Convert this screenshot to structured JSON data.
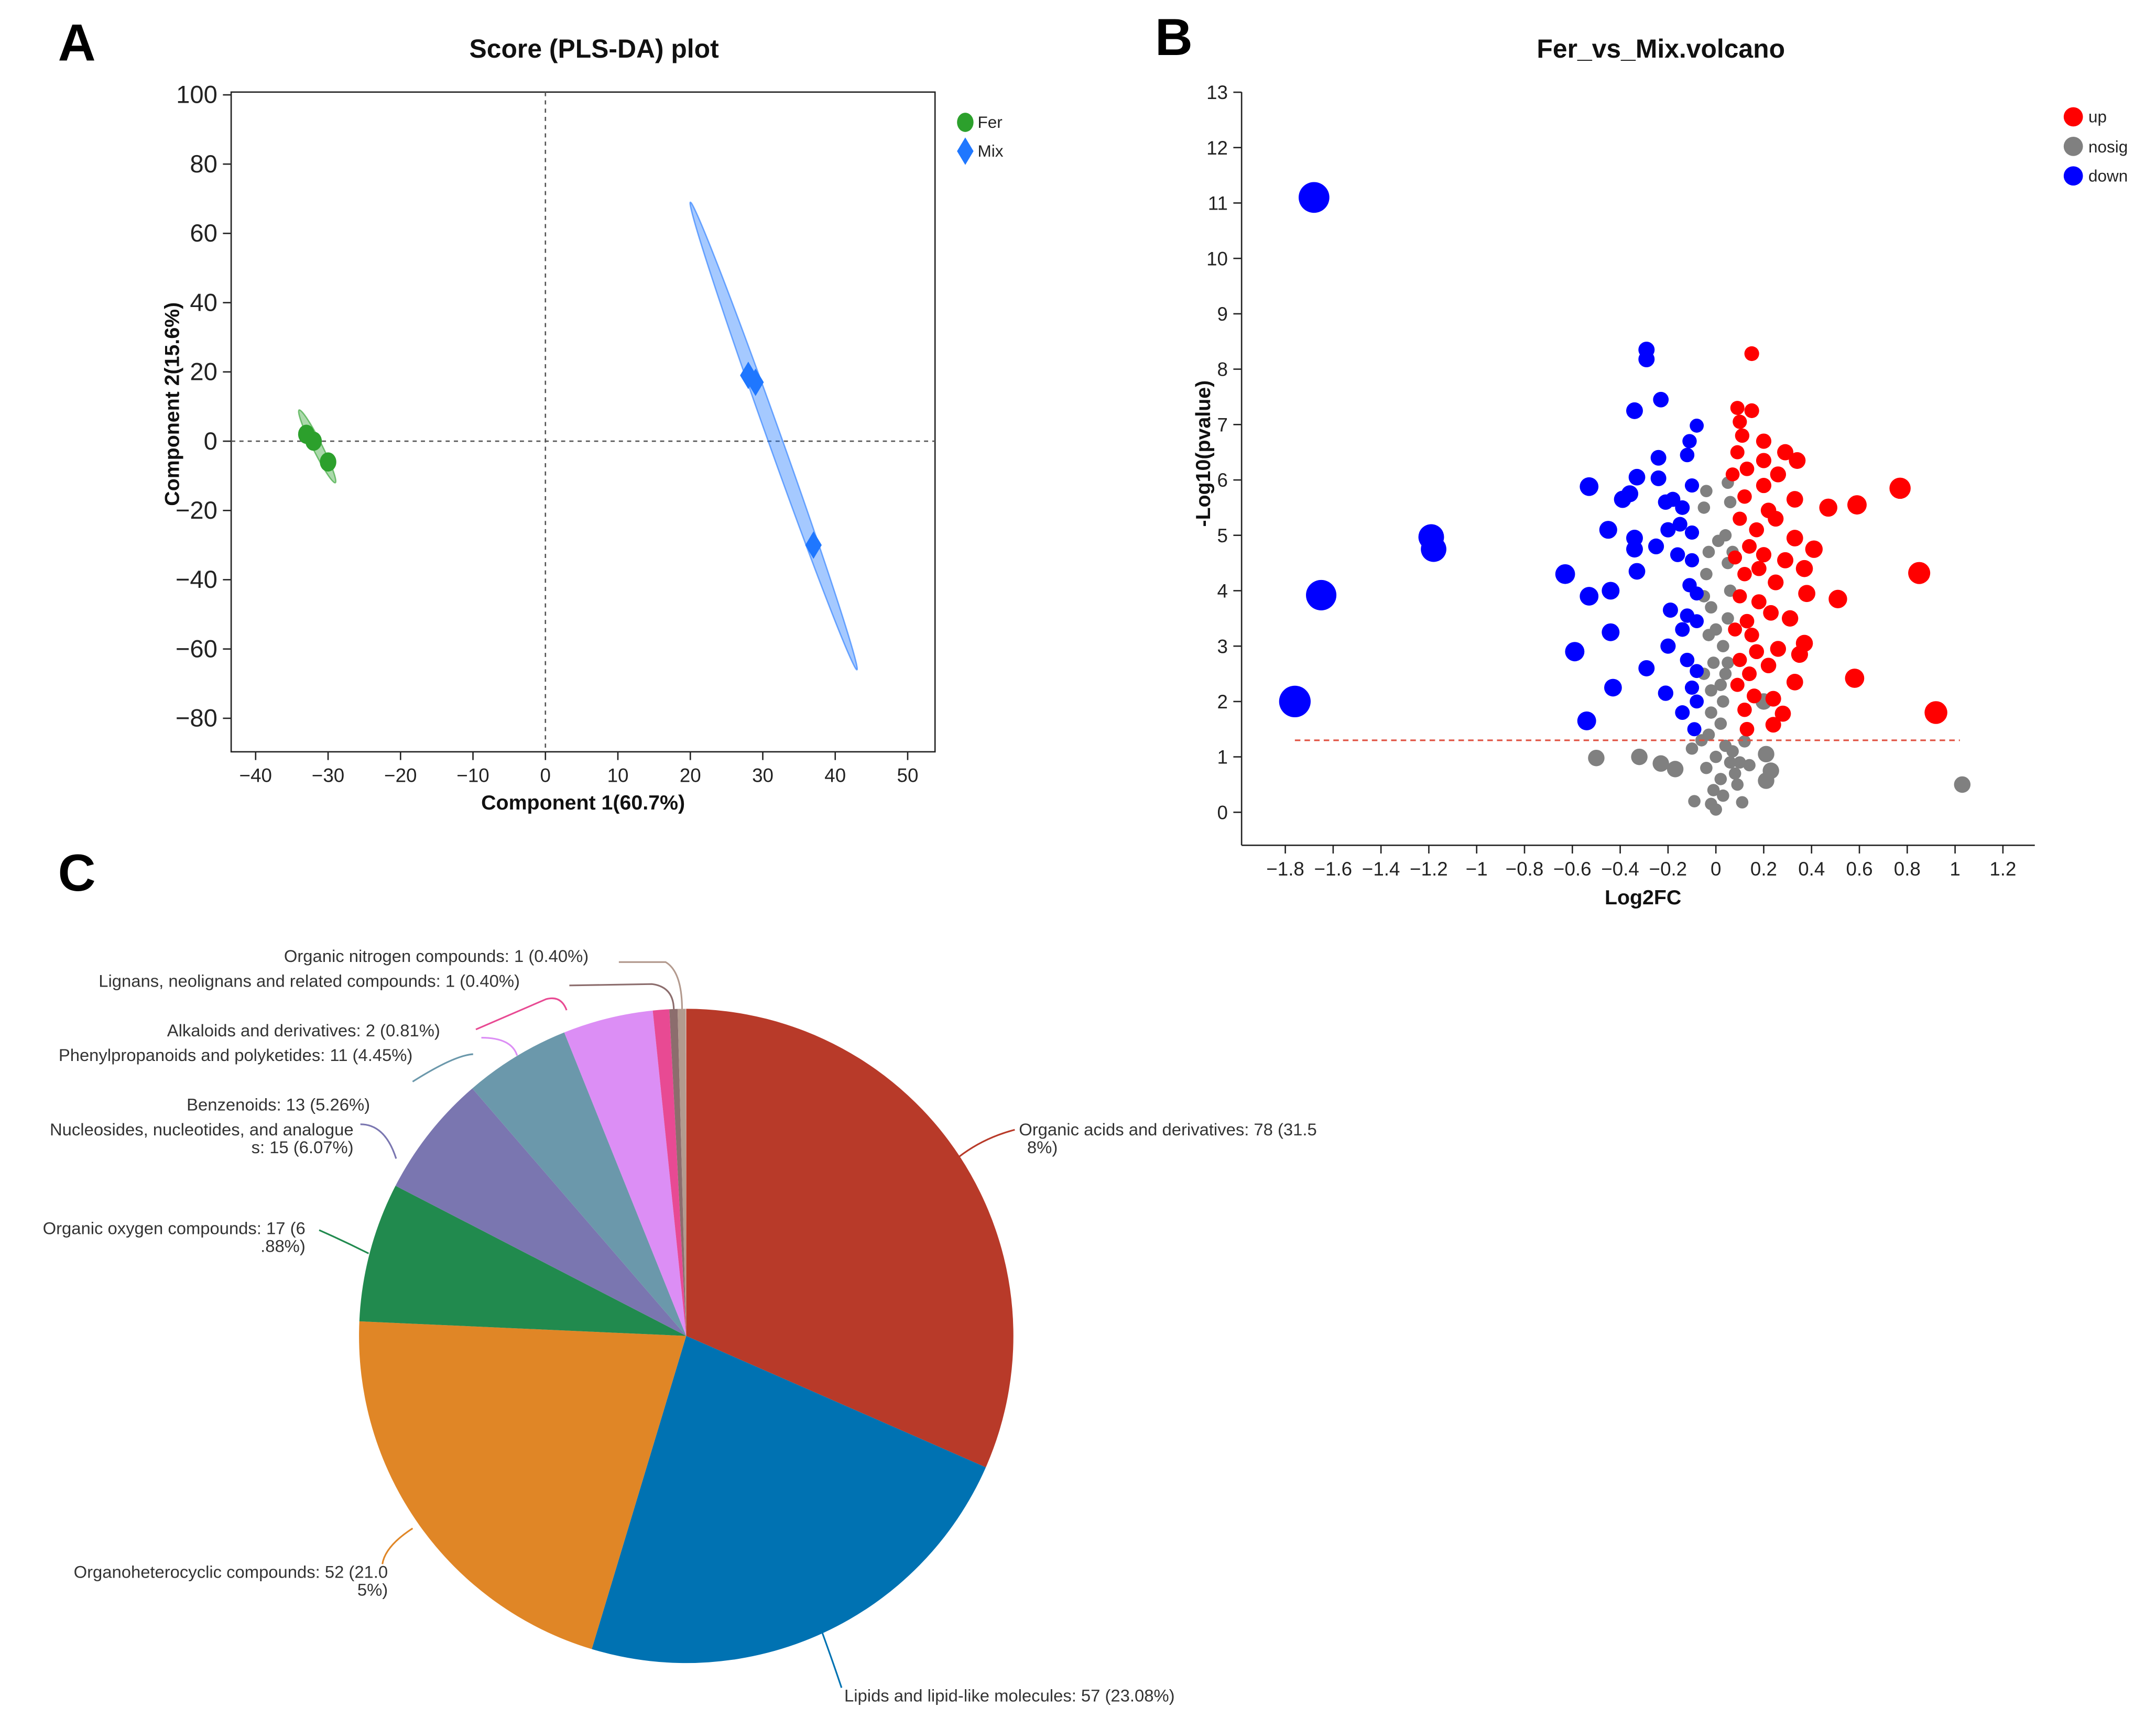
{
  "panels": {
    "a": "A",
    "b": "B",
    "c": "C"
  },
  "chart_data": [
    {
      "type": "scatter",
      "title": "Score (PLS-DA) plot",
      "xlabel": "Component 1(60.7%)",
      "ylabel": "Component 2(15.6%)",
      "xlim": [
        -43,
        53
      ],
      "ylim": [
        -90,
        100
      ],
      "xticks": [
        -40,
        -30,
        -20,
        -10,
        0,
        10,
        20,
        30,
        40,
        50
      ],
      "yticks": [
        100,
        80,
        60,
        40,
        20,
        0,
        -20,
        -40,
        -60,
        -80
      ],
      "legend": {
        "position": "top-right",
        "entries": [
          "Fer",
          "Mix"
        ]
      },
      "colors": {
        "Fer": "#2ca02c",
        "Mix": "#1f77ff"
      },
      "series": [
        {
          "name": "Fer",
          "points": [
            [
              -33,
              2
            ],
            [
              -32,
              0
            ],
            [
              -30,
              -6
            ]
          ],
          "ellipse": [
            [
              -34,
              9
            ],
            [
              -29,
              -12
            ]
          ]
        },
        {
          "name": "Mix",
          "points": [
            [
              28,
              19
            ],
            [
              29,
              17
            ],
            [
              37,
              -30
            ]
          ],
          "ellipse": [
            [
              20,
              69
            ],
            [
              43,
              -66
            ]
          ]
        }
      ]
    },
    {
      "type": "scatter",
      "title": "Fer_vs_Mix.volcano",
      "xlabel": "Log2FC",
      "ylabel": "-Log10(pvalue)",
      "xlim": [
        -1.9,
        1.35
      ],
      "ylim": [
        -0.6,
        13
      ],
      "xticks": [
        -1.8,
        -1.6,
        -1.4,
        -1.2,
        -1,
        -0.8,
        -0.6,
        -0.4,
        -0.2,
        0,
        0.2,
        0.4,
        0.6,
        0.8,
        1,
        1.2
      ],
      "xtick_labels": [
        "−1.8",
        "−1.6",
        "−1.4",
        "−1.2",
        "−1",
        "−0.8",
        "−0.6",
        "−0.4",
        "−0.2",
        "0",
        "0.2",
        "0.4",
        "0.6",
        "0.8",
        "1",
        "1.2"
      ],
      "yticks": [
        0,
        1,
        2,
        3,
        4,
        5,
        6,
        7,
        8,
        9,
        10,
        11,
        12,
        13
      ],
      "threshold": 1.3,
      "legend": {
        "position": "top-right",
        "entries": [
          "up",
          "nosig",
          "down"
        ]
      },
      "colors": {
        "up": "#ff0000",
        "nosig": "#808080",
        "down": "#0000ff",
        "threshold": "#e05040"
      },
      "series": [
        {
          "name": "nosig",
          "points": [
            [
              -0.5,
              0.98
            ],
            [
              -0.32,
              1.0
            ],
            [
              -0.23,
              0.88
            ],
            [
              -0.17,
              0.78
            ],
            [
              -0.1,
              1.15
            ],
            [
              1.03,
              0.5
            ],
            [
              0.12,
              1.28
            ],
            [
              0.21,
              1.05
            ],
            [
              0.23,
              0.75
            ],
            [
              0.21,
              0.57
            ],
            [
              -0.04,
              5.8
            ],
            [
              0.05,
              5.95
            ],
            [
              0.06,
              5.6
            ],
            [
              -0.05,
              5.5
            ],
            [
              0.04,
              5.0
            ],
            [
              -0.03,
              4.7
            ],
            [
              0.05,
              4.5
            ],
            [
              -0.04,
              4.3
            ],
            [
              0.06,
              4.0
            ],
            [
              -0.02,
              3.7
            ],
            [
              0.05,
              3.5
            ],
            [
              -0.03,
              3.2
            ],
            [
              0.03,
              3.0
            ],
            [
              -0.01,
              2.7
            ],
            [
              0.04,
              2.5
            ],
            [
              -0.02,
              2.2
            ],
            [
              0.03,
              2.0
            ],
            [
              -0.02,
              1.8
            ],
            [
              0.02,
              1.6
            ],
            [
              -0.03,
              1.4
            ],
            [
              0.04,
              1.2
            ],
            [
              0.0,
              1.0
            ],
            [
              0.06,
              0.9
            ],
            [
              -0.04,
              0.8
            ],
            [
              0.02,
              0.6
            ],
            [
              0.08,
              0.7
            ],
            [
              -0.01,
              0.4
            ],
            [
              0.03,
              0.3
            ],
            [
              -0.02,
              0.15
            ],
            [
              0.0,
              0.05
            ],
            [
              0.1,
              0.9
            ],
            [
              0.14,
              0.85
            ],
            [
              0.09,
              0.5
            ],
            [
              -0.09,
              0.2
            ],
            [
              0.11,
              0.18
            ],
            [
              0.07,
              1.1
            ],
            [
              -0.06,
              1.3
            ],
            [
              0.05,
              2.7
            ],
            [
              -0.05,
              3.9
            ],
            [
              0.01,
              4.9
            ],
            [
              0.2,
              2.0
            ],
            [
              0.07,
              4.7
            ],
            [
              0.0,
              3.3
            ],
            [
              0.02,
              2.3
            ],
            [
              -0.05,
              2.5
            ]
          ]
        },
        {
          "name": "down",
          "points": [
            [
              -1.68,
              11.1
            ],
            [
              -1.76,
              2.0
            ],
            [
              -1.65,
              3.92
            ],
            [
              -1.19,
              4.97
            ],
            [
              -1.18,
              4.75
            ],
            [
              -0.29,
              8.35
            ],
            [
              -0.29,
              8.18
            ],
            [
              -0.23,
              7.45
            ],
            [
              -0.34,
              7.25
            ],
            [
              -0.08,
              6.98
            ],
            [
              -0.11,
              6.7
            ],
            [
              -0.12,
              6.45
            ],
            [
              -0.24,
              6.4
            ],
            [
              -0.33,
              6.05
            ],
            [
              -0.24,
              6.03
            ],
            [
              -0.53,
              5.88
            ],
            [
              -0.36,
              5.75
            ],
            [
              -0.39,
              5.65
            ],
            [
              -0.21,
              5.6
            ],
            [
              -0.18,
              5.65
            ],
            [
              -0.1,
              5.9
            ],
            [
              -0.14,
              5.5
            ],
            [
              -0.45,
              5.1
            ],
            [
              -0.34,
              4.95
            ],
            [
              -0.2,
              5.1
            ],
            [
              -0.15,
              5.2
            ],
            [
              -0.1,
              5.05
            ],
            [
              -0.34,
              4.75
            ],
            [
              -0.25,
              4.8
            ],
            [
              -0.16,
              4.65
            ],
            [
              -0.1,
              4.55
            ],
            [
              -0.63,
              4.3
            ],
            [
              -0.33,
              4.35
            ],
            [
              -0.53,
              3.9
            ],
            [
              -0.44,
              4.0
            ],
            [
              -0.11,
              4.1
            ],
            [
              -0.08,
              3.95
            ],
            [
              -0.19,
              3.65
            ],
            [
              -0.12,
              3.55
            ],
            [
              -0.08,
              3.45
            ],
            [
              -0.44,
              3.25
            ],
            [
              -0.14,
              3.3
            ],
            [
              -0.59,
              2.9
            ],
            [
              -0.2,
              3.0
            ],
            [
              -0.12,
              2.75
            ],
            [
              -0.29,
              2.6
            ],
            [
              -0.08,
              2.55
            ],
            [
              -0.43,
              2.25
            ],
            [
              -0.21,
              2.15
            ],
            [
              -0.1,
              2.25
            ],
            [
              -0.08,
              2.0
            ],
            [
              -0.54,
              1.65
            ],
            [
              -0.14,
              1.8
            ],
            [
              -0.09,
              1.5
            ]
          ]
        },
        {
          "name": "up",
          "points": [
            [
              0.15,
              8.28
            ],
            [
              0.09,
              7.3
            ],
            [
              0.15,
              7.25
            ],
            [
              0.1,
              7.05
            ],
            [
              0.11,
              6.8
            ],
            [
              0.2,
              6.7
            ],
            [
              0.29,
              6.5
            ],
            [
              0.34,
              6.35
            ],
            [
              0.09,
              6.5
            ],
            [
              0.2,
              6.35
            ],
            [
              0.13,
              6.2
            ],
            [
              0.07,
              6.1
            ],
            [
              0.77,
              5.85
            ],
            [
              0.59,
              5.55
            ],
            [
              0.47,
              5.5
            ],
            [
              0.33,
              5.65
            ],
            [
              0.12,
              5.7
            ],
            [
              0.22,
              5.45
            ],
            [
              0.25,
              5.3
            ],
            [
              0.17,
              5.1
            ],
            [
              0.1,
              5.3
            ],
            [
              0.33,
              4.95
            ],
            [
              0.41,
              4.75
            ],
            [
              0.14,
              4.8
            ],
            [
              0.2,
              4.65
            ],
            [
              0.08,
              4.6
            ],
            [
              0.29,
              4.55
            ],
            [
              0.37,
              4.4
            ],
            [
              0.85,
              4.32
            ],
            [
              0.25,
              4.15
            ],
            [
              0.12,
              4.3
            ],
            [
              0.38,
              3.95
            ],
            [
              0.51,
              3.85
            ],
            [
              0.18,
              3.8
            ],
            [
              0.1,
              3.9
            ],
            [
              0.23,
              3.6
            ],
            [
              0.31,
              3.5
            ],
            [
              0.13,
              3.45
            ],
            [
              0.08,
              3.3
            ],
            [
              0.37,
              3.05
            ],
            [
              0.26,
              2.95
            ],
            [
              0.17,
              2.9
            ],
            [
              0.35,
              2.85
            ],
            [
              0.1,
              2.75
            ],
            [
              0.22,
              2.65
            ],
            [
              0.14,
              2.5
            ],
            [
              0.58,
              2.42
            ],
            [
              0.33,
              2.35
            ],
            [
              0.09,
              2.3
            ],
            [
              0.16,
              2.1
            ],
            [
              0.24,
              2.05
            ],
            [
              0.92,
              1.8
            ],
            [
              0.28,
              1.78
            ],
            [
              0.12,
              1.85
            ],
            [
              0.24,
              1.58
            ],
            [
              0.13,
              1.5
            ],
            [
              0.18,
              4.4
            ],
            [
              0.15,
              3.2
            ],
            [
              0.2,
              5.9
            ],
            [
              0.26,
              6.1
            ]
          ]
        }
      ]
    },
    {
      "type": "pie",
      "title": "",
      "slices": [
        {
          "label": "Organic acids and derivatives: 78 (31.5 8%)",
          "lines": [
            "Organic acids and derivatives: 78 (31.5",
            "8%)"
          ],
          "count": 78,
          "percent": 31.58,
          "color": "#b83a29"
        },
        {
          "label": "Lipids and lipid-like molecules: 57 (23.08%)",
          "lines": [
            "Lipids and lipid-like molecules: 57 (23.08%)"
          ],
          "count": 57,
          "percent": 23.08,
          "color": "#0072b2"
        },
        {
          "label": "Organoheterocyclic compounds: 52 (21.0 5%)",
          "lines": [
            "Organoheterocyclic compounds: 52 (21.0",
            "5%)"
          ],
          "count": 52,
          "percent": 21.05,
          "color": "#e08626"
        },
        {
          "label": "Organic oxygen compounds: 17 (6 .88%)",
          "lines": [
            "Organic oxygen compounds: 17 (6",
            ".88%)"
          ],
          "count": 17,
          "percent": 6.88,
          "color": "#218a4e"
        },
        {
          "label": "Nucleosides, nucleotides, and analogue s: 15 (6.07%)",
          "lines": [
            "Nucleosides, nucleotides, and analogue",
            "s: 15 (6.07%)"
          ],
          "count": 15,
          "percent": 6.07,
          "color": "#7a76b0"
        },
        {
          "label": "Benzenoids: 13 (5.26%)",
          "lines": [
            "Benzenoids: 13 (5.26%)"
          ],
          "count": 13,
          "percent": 5.26,
          "color": "#6b98ab"
        },
        {
          "label": "Phenylpropanoids and polyketides: 11 (4.45%)",
          "lines": [
            "Phenylpropanoids and polyketides: 11 (4.45%)"
          ],
          "count": 11,
          "percent": 4.45,
          "color": "#dc8ef5"
        },
        {
          "label": "Alkaloids and derivatives: 2 (0.81%)",
          "lines": [
            "Alkaloids and derivatives: 2 (0.81%)"
          ],
          "count": 2,
          "percent": 0.81,
          "color": "#e84a93"
        },
        {
          "label": "Lignans, neolignans and related compounds: 1 (0.40%)",
          "lines": [
            "Lignans, neolignans and related compounds: 1 (0.40%)"
          ],
          "count": 1,
          "percent": 0.4,
          "color": "#8c6d6d"
        },
        {
          "label": "Organic nitrogen compounds: 1 (0.40%)",
          "lines": [
            "Organic nitrogen compounds: 1 (0.40%)"
          ],
          "count": 1,
          "percent": 0.4,
          "color": "#b39a8e"
        }
      ]
    }
  ]
}
